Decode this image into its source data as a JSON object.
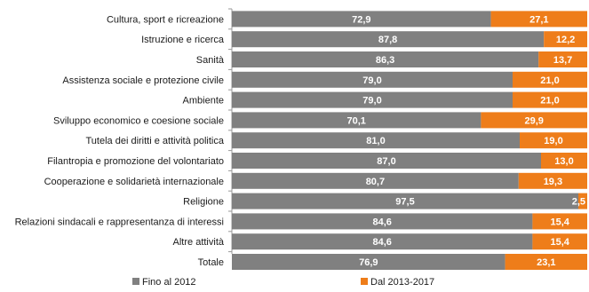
{
  "chart_data": {
    "type": "bar",
    "orientation": "horizontal",
    "stacked": true,
    "categories": [
      "Cultura, sport e ricreazione",
      "Istruzione e ricerca",
      "Sanità",
      "Assistenza sociale e protezione civile",
      "Ambiente",
      "Sviluppo economico e coesione sociale",
      "Tutela dei diritti e attività politica",
      "Filantropia e promozione del volontariato",
      "Cooperazione e solidarietà internazionale",
      "Religione",
      "Relazioni sindacali e rappresentanza di interessi",
      "Altre attività",
      "Totale"
    ],
    "series": [
      {
        "name": "Fino al 2012",
        "color": "#808080",
        "values": [
          72.9,
          87.8,
          86.3,
          79.0,
          79.0,
          70.1,
          81.0,
          87.0,
          80.7,
          97.5,
          84.6,
          84.6,
          76.9
        ],
        "labels": [
          "72,9",
          "87,8",
          "86,3",
          "79,0",
          "79,0",
          "70,1",
          "81,0",
          "87,0",
          "80,7",
          "97,5",
          "84,6",
          "84,6",
          "76,9"
        ]
      },
      {
        "name": "Dal 2013-2017",
        "color": "#ee7d1a",
        "values": [
          27.1,
          12.2,
          13.7,
          21.0,
          21.0,
          29.9,
          19.0,
          13.0,
          19.3,
          2.5,
          15.4,
          15.4,
          23.1
        ],
        "labels": [
          "27,1",
          "12,2",
          "13,7",
          "21,0",
          "21,0",
          "29,9",
          "19,0",
          "13,0",
          "19,3",
          "2,5",
          "15,4",
          "15,4",
          "23,1"
        ]
      }
    ],
    "xlim": [
      0,
      100
    ],
    "grid": false,
    "legend_position": "bottom"
  }
}
